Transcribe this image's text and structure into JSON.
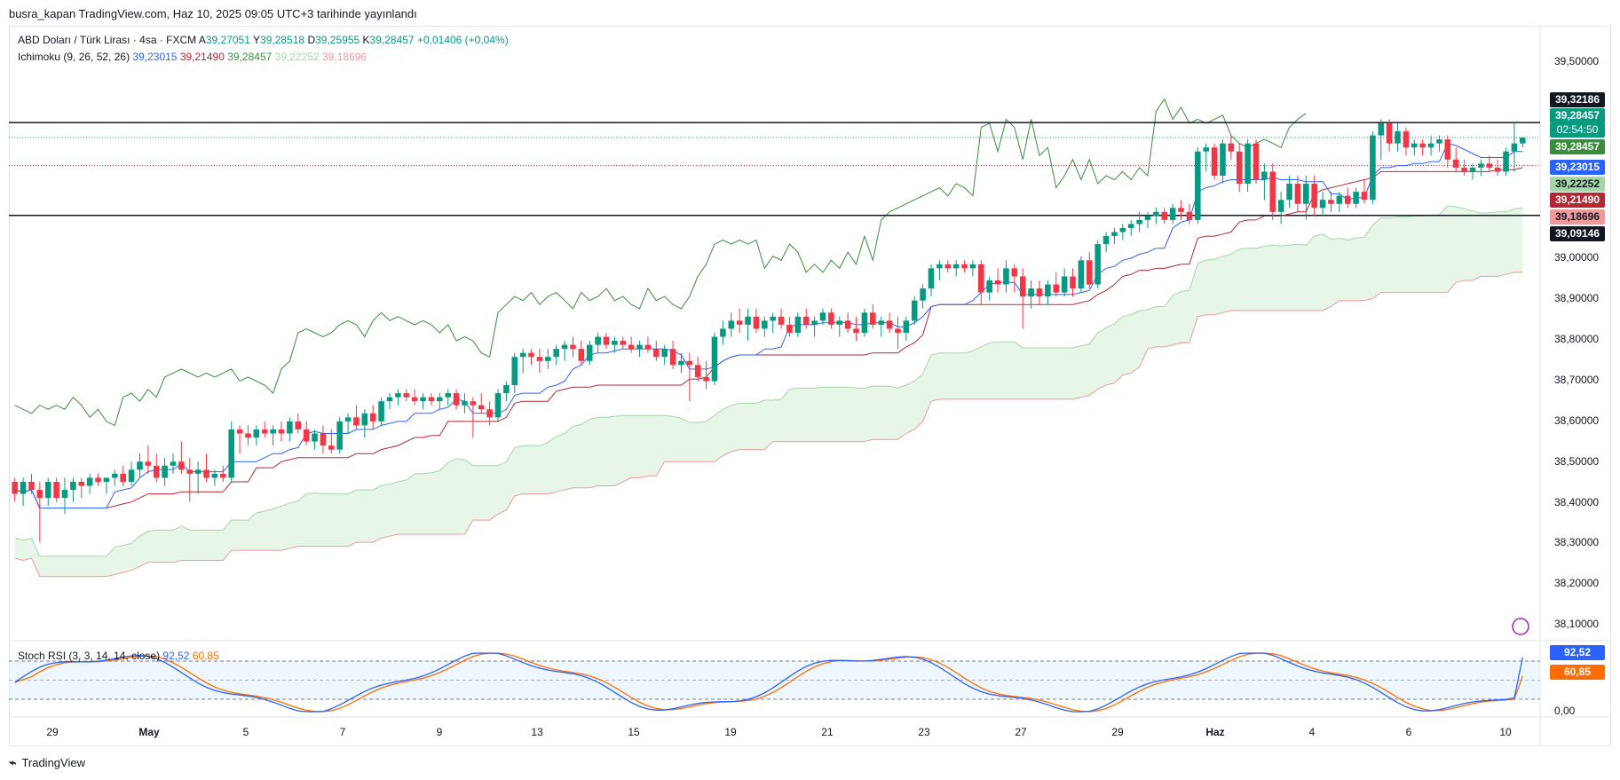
{
  "header": {
    "text": "busra_kapan TradingView.com, Haz 10, 2025 09:05 UTC+3 tarihinde yayınlandı"
  },
  "legend": {
    "symbol": "ABD Doları / Türk Lirası · 4sa · FXCM",
    "open_label": "A",
    "open": "39,27051",
    "high_label": "Y",
    "high": "39,28518",
    "low_label": "D",
    "low": "39,25955",
    "close_label": "K",
    "close": "39,28457",
    "change": "+0,01406 (+0,04%)",
    "ichimoku_label": "Ichimoku (9, 26, 52, 26)",
    "ichi1": "39,23015",
    "ichi2": "39,21490",
    "ichi3": "39,28457",
    "ichi4": "39,22252",
    "ichi5": "39,18696",
    "stoch_label": "Stoch RSI (3, 3, 14, 14, close)",
    "stoch_k": "92,52",
    "stoch_d": "60,85"
  },
  "price_axis": [
    "39,50000",
    "39,00000",
    "38,90000",
    "38,80000",
    "38,70000",
    "38,60000",
    "38,50000",
    "38,40000",
    "38,30000",
    "38,20000",
    "38,10000"
  ],
  "stoch_axis": [
    "0,00"
  ],
  "price_tags": {
    "upper_line": "39,32186",
    "last_price": "39,28457",
    "countdown": "02:54:50",
    "chikou": "39,28457",
    "tenkan": "39,23015",
    "span_a": "39,22252",
    "kijun": "39,21490",
    "span_b": "39,18696",
    "lower_line": "39,09146",
    "stoch_k": "92,52",
    "stoch_d": "60,85"
  },
  "x_axis": [
    "29",
    "May",
    "5",
    "7",
    "9",
    "13",
    "15",
    "19",
    "21",
    "23",
    "27",
    "29",
    "Haz",
    "4",
    "6",
    "10"
  ],
  "footer": {
    "brand": "TradingView"
  },
  "colors": {
    "up": "#089981",
    "down": "#f23645",
    "tenkan": "#2962ff",
    "kijun": "#b22833",
    "chikou": "#388e3c",
    "span_a": "#a5d6a7",
    "span_b": "#ef9a9a",
    "cloud": "#e8f5e9",
    "stoch_k": "#2962ff",
    "stoch_d": "#ff6d00"
  },
  "chart_data": {
    "type": "candlestick",
    "ylim": [
      38.04,
      39.56
    ],
    "horizontal_lines": [
      39.32186,
      39.09146
    ],
    "candles": [
      [
        38.43,
        38.44,
        38.38,
        38.4
      ],
      [
        38.4,
        38.44,
        38.37,
        38.43
      ],
      [
        38.43,
        38.45,
        38.4,
        38.41
      ],
      [
        38.41,
        38.43,
        38.28,
        38.39
      ],
      [
        38.39,
        38.44,
        38.37,
        38.43
      ],
      [
        38.43,
        38.44,
        38.38,
        38.39
      ],
      [
        38.39,
        38.44,
        38.35,
        38.41
      ],
      [
        38.41,
        38.44,
        38.38,
        38.43
      ],
      [
        38.43,
        38.44,
        38.39,
        38.42
      ],
      [
        38.42,
        38.45,
        38.4,
        38.44
      ],
      [
        38.44,
        38.45,
        38.42,
        38.43
      ],
      [
        38.43,
        38.44,
        38.4,
        38.44
      ],
      [
        38.44,
        38.46,
        38.42,
        38.45
      ],
      [
        38.45,
        38.47,
        38.42,
        38.43
      ],
      [
        38.43,
        38.48,
        38.42,
        38.46
      ],
      [
        38.46,
        38.5,
        38.44,
        38.48
      ],
      [
        38.48,
        38.52,
        38.45,
        38.47
      ],
      [
        38.47,
        38.5,
        38.43,
        38.44
      ],
      [
        38.44,
        38.49,
        38.42,
        38.47
      ],
      [
        38.47,
        38.5,
        38.45,
        38.48
      ],
      [
        38.48,
        38.53,
        38.45,
        38.46
      ],
      [
        38.46,
        38.49,
        38.38,
        38.45
      ],
      [
        38.45,
        38.48,
        38.4,
        38.46
      ],
      [
        38.46,
        38.5,
        38.43,
        38.44
      ],
      [
        38.44,
        38.46,
        38.42,
        38.45
      ],
      [
        38.45,
        38.47,
        38.43,
        38.44
      ],
      [
        38.44,
        38.58,
        38.43,
        38.56
      ],
      [
        38.56,
        38.57,
        38.5,
        38.55
      ],
      [
        38.55,
        38.57,
        38.52,
        38.54
      ],
      [
        38.54,
        38.57,
        38.52,
        38.56
      ],
      [
        38.56,
        38.58,
        38.54,
        38.55
      ],
      [
        38.55,
        38.57,
        38.52,
        38.56
      ],
      [
        38.56,
        38.58,
        38.53,
        38.55
      ],
      [
        38.55,
        38.59,
        38.53,
        38.58
      ],
      [
        38.58,
        38.6,
        38.55,
        38.56
      ],
      [
        38.56,
        38.58,
        38.52,
        38.53
      ],
      [
        38.53,
        38.56,
        38.51,
        38.55
      ],
      [
        38.55,
        38.57,
        38.5,
        38.52
      ],
      [
        38.52,
        38.56,
        38.5,
        38.51
      ],
      [
        38.51,
        38.59,
        38.5,
        38.58
      ],
      [
        38.58,
        38.6,
        38.55,
        38.59
      ],
      [
        38.59,
        38.62,
        38.56,
        38.57
      ],
      [
        38.57,
        38.61,
        38.54,
        38.6
      ],
      [
        38.6,
        38.62,
        38.56,
        38.58
      ],
      [
        38.58,
        38.64,
        38.57,
        38.63
      ],
      [
        38.63,
        38.65,
        38.61,
        38.64
      ],
      [
        38.64,
        38.66,
        38.62,
        38.65
      ],
      [
        38.65,
        38.66,
        38.63,
        38.64
      ],
      [
        38.64,
        38.66,
        38.62,
        38.63
      ],
      [
        38.63,
        38.65,
        38.61,
        38.64
      ],
      [
        38.64,
        38.65,
        38.62,
        38.63
      ],
      [
        38.63,
        38.65,
        38.61,
        38.64
      ],
      [
        38.64,
        38.66,
        38.62,
        38.65
      ],
      [
        38.65,
        38.66,
        38.61,
        38.62
      ],
      [
        38.62,
        38.65,
        38.6,
        38.63
      ],
      [
        38.63,
        38.64,
        38.54,
        38.62
      ],
      [
        38.62,
        38.65,
        38.6,
        38.61
      ],
      [
        38.61,
        38.63,
        38.57,
        38.59
      ],
      [
        38.59,
        38.66,
        38.58,
        38.65
      ],
      [
        38.65,
        38.68,
        38.63,
        38.67
      ],
      [
        38.67,
        38.75,
        38.65,
        38.74
      ],
      [
        38.74,
        38.76,
        38.7,
        38.75
      ],
      [
        38.75,
        38.76,
        38.72,
        38.74
      ],
      [
        38.74,
        38.76,
        38.7,
        38.73
      ],
      [
        38.73,
        38.76,
        38.71,
        38.74
      ],
      [
        38.74,
        38.77,
        38.72,
        38.76
      ],
      [
        38.76,
        38.78,
        38.73,
        38.77
      ],
      [
        38.77,
        38.79,
        38.74,
        38.76
      ],
      [
        38.76,
        38.78,
        38.72,
        38.73
      ],
      [
        38.73,
        38.78,
        38.72,
        38.77
      ],
      [
        38.77,
        38.8,
        38.75,
        38.79
      ],
      [
        38.79,
        38.8,
        38.76,
        38.77
      ],
      [
        38.77,
        38.79,
        38.75,
        38.78
      ],
      [
        38.78,
        38.79,
        38.76,
        38.77
      ],
      [
        38.77,
        38.79,
        38.75,
        38.76
      ],
      [
        38.76,
        38.78,
        38.74,
        38.77
      ],
      [
        38.77,
        38.79,
        38.75,
        38.76
      ],
      [
        38.76,
        38.78,
        38.73,
        38.74
      ],
      [
        38.74,
        38.77,
        38.72,
        38.76
      ],
      [
        38.76,
        38.78,
        38.71,
        38.72
      ],
      [
        38.72,
        38.75,
        38.7,
        38.73
      ],
      [
        38.73,
        38.75,
        38.63,
        38.72
      ],
      [
        38.72,
        38.74,
        38.68,
        38.69
      ],
      [
        38.69,
        38.73,
        38.66,
        38.68
      ],
      [
        38.68,
        38.8,
        38.67,
        38.79
      ],
      [
        38.79,
        38.83,
        38.77,
        38.81
      ],
      [
        38.81,
        38.85,
        38.79,
        38.83
      ],
      [
        38.83,
        38.86,
        38.8,
        38.82
      ],
      [
        38.82,
        38.86,
        38.78,
        38.84
      ],
      [
        38.84,
        38.86,
        38.8,
        38.81
      ],
      [
        38.81,
        38.84,
        38.79,
        38.83
      ],
      [
        38.83,
        38.85,
        38.8,
        38.84
      ],
      [
        38.84,
        38.86,
        38.81,
        38.82
      ],
      [
        38.82,
        38.84,
        38.79,
        38.8
      ],
      [
        38.8,
        38.85,
        38.79,
        38.84
      ],
      [
        38.84,
        38.86,
        38.81,
        38.82
      ],
      [
        38.82,
        38.84,
        38.79,
        38.83
      ],
      [
        38.83,
        38.86,
        38.82,
        38.85
      ],
      [
        38.85,
        38.86,
        38.81,
        38.82
      ],
      [
        38.82,
        38.84,
        38.79,
        38.83
      ],
      [
        38.83,
        38.85,
        38.8,
        38.81
      ],
      [
        38.81,
        38.84,
        38.78,
        38.8
      ],
      [
        38.8,
        38.86,
        38.79,
        38.85
      ],
      [
        38.85,
        38.87,
        38.81,
        38.82
      ],
      [
        38.82,
        38.84,
        38.79,
        38.83
      ],
      [
        38.83,
        38.85,
        38.8,
        38.81
      ],
      [
        38.81,
        38.84,
        38.76,
        38.8
      ],
      [
        38.8,
        38.84,
        38.78,
        38.83
      ],
      [
        38.83,
        38.89,
        38.82,
        38.88
      ],
      [
        38.88,
        38.92,
        38.86,
        38.91
      ],
      [
        38.91,
        38.97,
        38.89,
        38.96
      ],
      [
        38.96,
        38.98,
        38.93,
        38.97
      ],
      [
        38.97,
        38.98,
        38.95,
        38.96
      ],
      [
        38.96,
        38.98,
        38.94,
        38.97
      ],
      [
        38.97,
        38.98,
        38.95,
        38.96
      ],
      [
        38.96,
        38.98,
        38.94,
        38.97
      ],
      [
        38.97,
        38.98,
        38.87,
        38.9
      ],
      [
        38.9,
        38.94,
        38.88,
        38.93
      ],
      [
        38.93,
        38.96,
        38.9,
        38.92
      ],
      [
        38.92,
        38.98,
        38.9,
        38.96
      ],
      [
        38.96,
        38.97,
        38.9,
        38.94
      ],
      [
        38.94,
        38.96,
        38.81,
        38.89
      ],
      [
        38.89,
        38.93,
        38.86,
        38.91
      ],
      [
        38.91,
        38.93,
        38.87,
        38.89
      ],
      [
        38.89,
        38.93,
        38.87,
        38.92
      ],
      [
        38.92,
        38.95,
        38.89,
        38.9
      ],
      [
        38.9,
        38.96,
        38.89,
        38.94
      ],
      [
        38.94,
        38.96,
        38.89,
        38.91
      ],
      [
        38.91,
        38.99,
        38.9,
        38.98
      ],
      [
        38.98,
        39.0,
        38.91,
        38.92
      ],
      [
        38.92,
        39.03,
        38.91,
        39.02
      ],
      [
        39.02,
        39.05,
        39.0,
        39.04
      ],
      [
        39.04,
        39.06,
        39.02,
        39.05
      ],
      [
        39.05,
        39.07,
        39.03,
        39.06
      ],
      [
        39.06,
        39.08,
        39.04,
        39.07
      ],
      [
        39.07,
        39.1,
        39.05,
        39.08
      ],
      [
        39.08,
        39.1,
        39.06,
        39.09
      ],
      [
        39.09,
        39.11,
        39.07,
        39.1
      ],
      [
        39.1,
        39.11,
        39.07,
        39.08
      ],
      [
        39.08,
        39.12,
        39.07,
        39.11
      ],
      [
        39.11,
        39.13,
        39.08,
        39.1
      ],
      [
        39.1,
        39.12,
        39.07,
        39.08
      ],
      [
        39.08,
        39.26,
        39.07,
        39.25
      ],
      [
        39.25,
        39.27,
        39.2,
        39.26
      ],
      [
        39.26,
        39.27,
        39.18,
        39.19
      ],
      [
        39.19,
        39.28,
        39.17,
        39.27
      ],
      [
        39.27,
        39.29,
        39.23,
        39.25
      ],
      [
        39.25,
        39.27,
        39.15,
        39.17
      ],
      [
        39.17,
        39.28,
        39.15,
        39.27
      ],
      [
        39.27,
        39.28,
        39.17,
        39.18
      ],
      [
        39.18,
        39.22,
        39.13,
        39.2
      ],
      [
        39.2,
        39.22,
        39.08,
        39.1
      ],
      [
        39.1,
        39.15,
        39.07,
        39.13
      ],
      [
        39.13,
        39.19,
        39.11,
        39.17
      ],
      [
        39.17,
        39.19,
        39.1,
        39.12
      ],
      [
        39.12,
        39.19,
        39.08,
        39.17
      ],
      [
        39.17,
        39.19,
        39.09,
        39.11
      ],
      [
        39.11,
        39.15,
        39.09,
        39.13
      ],
      [
        39.13,
        39.15,
        39.1,
        39.12
      ],
      [
        39.12,
        39.15,
        39.1,
        39.14
      ],
      [
        39.14,
        39.16,
        39.11,
        39.12
      ],
      [
        39.12,
        39.16,
        39.11,
        39.15
      ],
      [
        39.15,
        39.18,
        39.12,
        39.13
      ],
      [
        39.13,
        39.3,
        39.12,
        39.29
      ],
      [
        39.29,
        39.33,
        39.23,
        39.32
      ],
      [
        39.32,
        39.33,
        39.25,
        39.27
      ],
      [
        39.27,
        39.32,
        39.25,
        39.3
      ],
      [
        39.3,
        39.31,
        39.24,
        39.26
      ],
      [
        39.26,
        39.28,
        39.24,
        39.27
      ],
      [
        39.27,
        39.28,
        39.24,
        39.26
      ],
      [
        39.26,
        39.29,
        39.24,
        39.27
      ],
      [
        39.27,
        39.29,
        39.25,
        39.28
      ],
      [
        39.28,
        39.29,
        39.21,
        39.23
      ],
      [
        39.23,
        39.26,
        39.2,
        39.21
      ],
      [
        39.21,
        39.23,
        39.19,
        39.2
      ],
      [
        39.2,
        39.22,
        39.18,
        39.21
      ],
      [
        39.21,
        39.23,
        39.19,
        39.22
      ],
      [
        39.22,
        39.24,
        39.2,
        39.21
      ],
      [
        39.21,
        39.23,
        39.19,
        39.2
      ],
      [
        39.2,
        39.26,
        39.19,
        39.25
      ],
      [
        39.25,
        39.32,
        39.2,
        39.27
      ],
      [
        39.27,
        39.285,
        39.26,
        39.28457
      ]
    ],
    "stoch_rsi": {
      "k": 92.52,
      "d": 60.85,
      "ylim": [
        0,
        100
      ]
    }
  }
}
